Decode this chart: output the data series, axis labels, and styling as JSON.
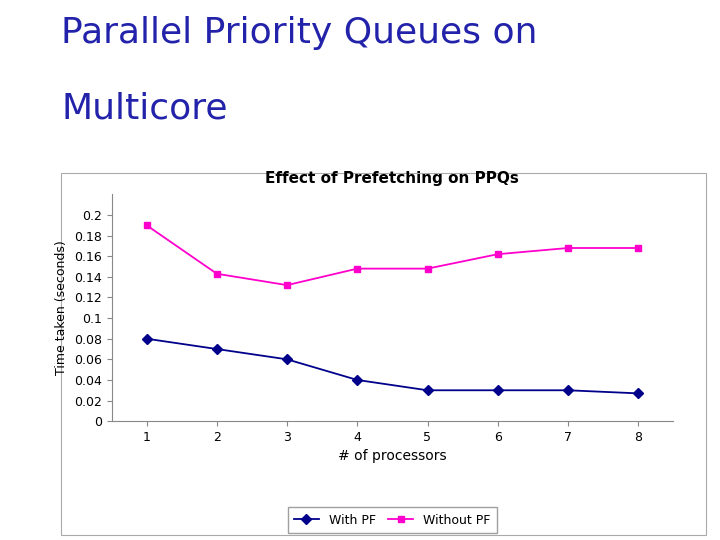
{
  "title_line1": "Parallel Priority Queues on",
  "title_line2": "Multicore",
  "title_color": "#2222AA",
  "chart_title": "Effect of Prefetching on PPQs",
  "xlabel": "# of processors",
  "ylabel": "Time taken (seconds)",
  "x": [
    1,
    2,
    3,
    4,
    5,
    6,
    7,
    8
  ],
  "with_pf": [
    0.08,
    0.07,
    0.06,
    0.04,
    0.03,
    0.03,
    0.03,
    0.027
  ],
  "without_pf": [
    0.19,
    0.143,
    0.132,
    0.148,
    0.148,
    0.162,
    0.168,
    0.168
  ],
  "with_pf_color": "#00008B",
  "without_pf_color": "#FF00CC",
  "ylim": [
    0,
    0.22
  ],
  "yticks": [
    0,
    0.02,
    0.04,
    0.06,
    0.08,
    0.1,
    0.12,
    0.14,
    0.16,
    0.18,
    0.2
  ],
  "legend_with": "With PF",
  "legend_without": "Without PF",
  "bg_color": "#FFFFFF",
  "chart_bg": "#FFFFFF",
  "title_fontsize": 26,
  "chart_title_fontsize": 11,
  "tick_fontsize": 9,
  "label_fontsize": 10
}
